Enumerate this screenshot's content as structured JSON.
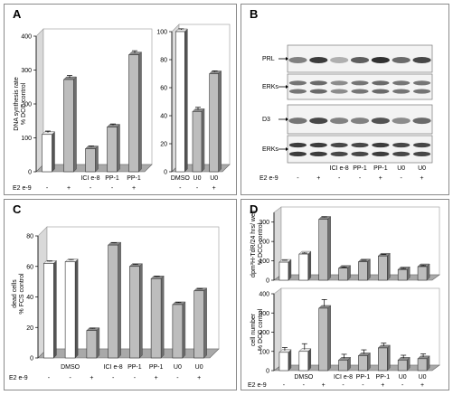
{
  "panels": {
    "A": {
      "letter": "A"
    },
    "B": {
      "letter": "B"
    },
    "C": {
      "letter": "C"
    },
    "D": {
      "letter": "D"
    }
  },
  "panelB": {
    "categories": [
      "ICI e-8",
      "PP-1",
      "PP-1",
      "U0",
      "U0"
    ],
    "e2_label": "E2 e-9",
    "e2_signs": [
      "-",
      "+",
      "-",
      "-",
      "+",
      "-",
      "+"
    ],
    "blots": [
      {
        "label": "PRL",
        "bands": [
          0.55,
          0.85,
          0.35,
          0.7,
          0.9,
          0.65,
          0.8
        ]
      },
      {
        "label": "ERKs",
        "bands": [
          0.6,
          0.65,
          0.5,
          0.6,
          0.65,
          0.6,
          0.6
        ],
        "double": true
      },
      {
        "label": "D3",
        "bands": [
          0.6,
          0.8,
          0.55,
          0.55,
          0.75,
          0.5,
          0.65
        ]
      },
      {
        "label": "ERKs",
        "bands": [
          0.85,
          0.85,
          0.8,
          0.8,
          0.85,
          0.8,
          0.8
        ],
        "double": true
      }
    ]
  },
  "chart_data": [
    {
      "id": "A-left",
      "type": "bar",
      "ylabel": "DNA synthesis rate % DCC control",
      "ylim": [
        0,
        400
      ],
      "yticks": [
        0,
        100,
        200,
        300,
        400
      ],
      "categories": [
        "",
        "",
        "ICI e-8",
        "PP-1",
        "PP-1"
      ],
      "e2_label": "E2 e-9",
      "e2_signs": [
        "-",
        "+",
        "-",
        "-",
        "+"
      ],
      "values": [
        110,
        272,
        68,
        132,
        345
      ],
      "errors": [
        10,
        12,
        8,
        9,
        12
      ],
      "bar_styles": [
        "white",
        "gray",
        "gray",
        "gray",
        "gray"
      ]
    },
    {
      "id": "A-right",
      "type": "bar",
      "ylabel": "",
      "ylim": [
        0,
        100
      ],
      "yticks": [
        0,
        20,
        40,
        60,
        80,
        100
      ],
      "categories": [
        "DMSO",
        "U0",
        "U0"
      ],
      "e2_signs": [
        "-",
        "-",
        "+"
      ],
      "values": [
        100,
        43,
        70
      ],
      "errors": [
        2,
        3,
        2
      ],
      "bar_styles": [
        "white",
        "gray",
        "gray"
      ]
    },
    {
      "id": "C",
      "type": "bar",
      "ylabel": "dead cells % FCS control",
      "ylim": [
        0,
        80
      ],
      "yticks": [
        0,
        20,
        40,
        60,
        80
      ],
      "categories": [
        "",
        "DMSO",
        "",
        "ICI e-8",
        "PP-1",
        "PP-1",
        "U0",
        "U0"
      ],
      "e2_label": "E2 e-9",
      "e2_signs": [
        "-",
        "-",
        "+",
        "-",
        "-",
        "+",
        "-",
        "+"
      ],
      "values": [
        62,
        63,
        18,
        74,
        60,
        52,
        35,
        44
      ],
      "errors": [
        1.5,
        1.5,
        1.5,
        1.5,
        1.5,
        1.5,
        1.5,
        1.5
      ],
      "bar_styles": [
        "white",
        "white",
        "gray",
        "gray",
        "gray",
        "gray",
        "gray",
        "gray"
      ]
    },
    {
      "id": "D-top",
      "type": "bar",
      "ylabel": "dpm³H-TdR/24 hrs/ well % DCC control",
      "ylim": [
        0,
        350
      ],
      "yticks": [
        0,
        100,
        200,
        300
      ],
      "categories": [
        "",
        "",
        "",
        "",
        "",
        "",
        "",
        ""
      ],
      "values": [
        93,
        135,
        315,
        62,
        95,
        125,
        55,
        70
      ],
      "errors": [
        10,
        5,
        12,
        5,
        8,
        8,
        5,
        5
      ],
      "bar_styles": [
        "white",
        "white",
        "gray",
        "gray",
        "gray",
        "gray",
        "gray",
        "gray"
      ]
    },
    {
      "id": "D-bottom",
      "type": "bar",
      "ylabel": "cell number % DCC control",
      "ylim": [
        0,
        400
      ],
      "yticks": [
        0,
        100,
        200,
        300,
        400
      ],
      "categories": [
        "",
        "DMSO",
        "",
        "ICI e-8",
        "PP-1",
        "PP-1",
        "U0",
        "U0"
      ],
      "e2_label": "E2 e-9",
      "e2_signs": [
        "-",
        "-",
        "+",
        "-",
        "-",
        "+",
        "-",
        "+"
      ],
      "values": [
        95,
        100,
        325,
        55,
        78,
        118,
        55,
        62
      ],
      "errors": [
        25,
        40,
        45,
        30,
        30,
        25,
        25,
        25
      ],
      "bar_styles": [
        "white",
        "white",
        "gray",
        "gray",
        "gray",
        "gray",
        "gray",
        "gray"
      ]
    }
  ]
}
